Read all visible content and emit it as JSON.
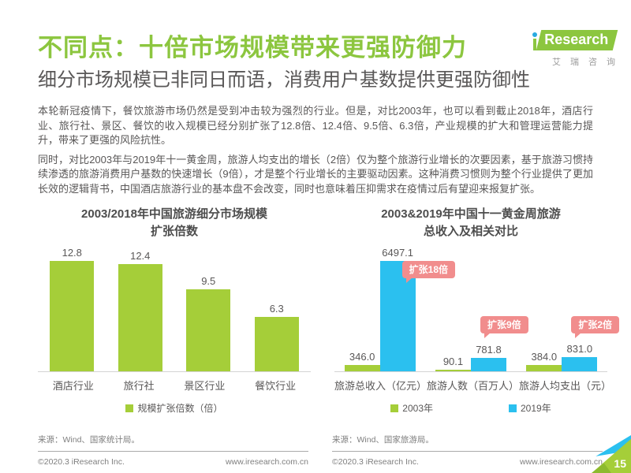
{
  "page": {
    "page_number": "15"
  },
  "header": {
    "title": "不同点：十倍市场规模带来更强防御力",
    "subtitle": "细分市场规模已非同日而语，消费用户基数提供更强防御性"
  },
  "logo": {
    "brand": "iResearch",
    "banner_text": "Research",
    "caption": "艾瑞咨询"
  },
  "paragraphs": [
    "本轮新冠疫情下，餐饮旅游市场仍然是受到冲击较为强烈的行业。但是，对比2003年，也可以看到截止2018年，酒店行业、旅行社、景区、餐饮的收入规模已经分别扩张了12.8倍、12.4倍、9.5倍、6.3倍，产业规模的扩大和管理运营能力提升，带来了更强的风险抗性。",
    "同时，对比2003年与2019年十一黄金周，旅游人均支出的增长（2倍）仅为整个旅游行业增长的次要因素，基于旅游习惯持续渗透的旅游消费用户基数的快速增长（9倍），才是整个行业增长的主要驱动因素。这种消费习惯则为整个行业提供了更加长效的逻辑背书，中国酒店旅游行业的基本盘不会改变，同时也意味着压抑需求在疫情过后有望迎来报复扩张。"
  ],
  "chart_data": [
    {
      "type": "bar",
      "title": "2003/2018年中国旅游细分市场规模扩张倍数",
      "title_lines": [
        "2003/2018年中国旅游细分市场规模",
        "扩张倍数"
      ],
      "categories": [
        "酒店行业",
        "旅行社",
        "景区行业",
        "餐饮行业"
      ],
      "values": [
        12.8,
        12.4,
        9.5,
        6.3
      ],
      "value_labels": [
        "12.8",
        "12.4",
        "9.5",
        "6.3"
      ],
      "legend": [
        "规模扩张倍数（倍）"
      ],
      "legend_position": "bottom",
      "bar_color": "#A5CE39",
      "ylim": [
        0,
        14
      ],
      "grid": false,
      "xlabel": "",
      "ylabel": "",
      "source": "来源：Wind、国家统计局。"
    },
    {
      "type": "bar",
      "title": "2003&2019年中国十一黄金周旅游总收入及相关对比",
      "title_lines": [
        "2003&2019年中国十一黄金周旅游",
        "总收入及相关对比"
      ],
      "categories": [
        "旅游总收入（亿元）",
        "旅游人数（百万人）",
        "旅游人均支出（元）"
      ],
      "series": [
        {
          "name": "2003年",
          "color": "#A5CE39",
          "values": [
            346.0,
            90.1,
            384.0
          ],
          "value_labels": [
            "346.0",
            "90.1",
            "384.0"
          ]
        },
        {
          "name": "2019年",
          "color": "#2BC0EF",
          "values": [
            6497.1,
            781.8,
            831.0
          ],
          "value_labels": [
            "6497.1",
            "781.8",
            "831.0"
          ]
        }
      ],
      "annotations": [
        "扩张18倍",
        "扩张9倍",
        "扩张2倍"
      ],
      "legend_position": "bottom",
      "ylim": [
        0,
        7000
      ],
      "grid": false,
      "xlabel": "",
      "ylabel": "",
      "source": "来源：Wind、国家旅游局。"
    }
  ],
  "footer": {
    "copyright": "©2020.3 iResearch Inc.",
    "website": "www.iresearch.com.cn"
  },
  "colors": {
    "title_green": "#8CC63F",
    "text_gray": "#595757",
    "bar_green": "#A5CE39",
    "bar_blue": "#2BC0EF",
    "badge_pink": "#F18D8D"
  }
}
